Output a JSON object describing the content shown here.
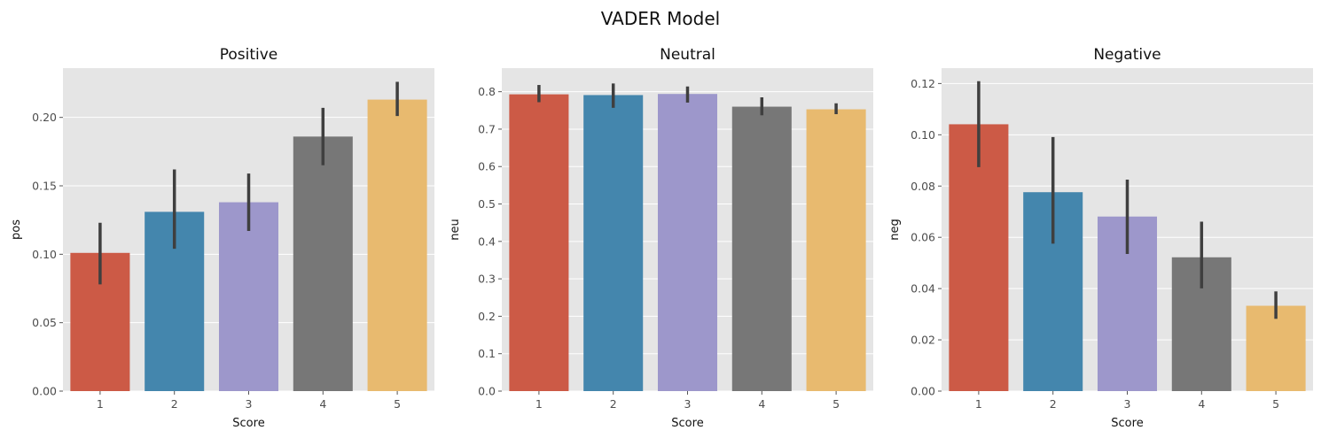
{
  "figure": {
    "title": "VADER Model"
  },
  "chart_data": [
    {
      "type": "bar",
      "title": "Positive",
      "xlabel": "Score",
      "ylabel": "pos",
      "categories": [
        "1",
        "2",
        "3",
        "4",
        "5"
      ],
      "values": [
        0.101,
        0.131,
        0.138,
        0.186,
        0.213
      ],
      "error_low": [
        0.078,
        0.104,
        0.117,
        0.165,
        0.201
      ],
      "error_high": [
        0.123,
        0.162,
        0.159,
        0.207,
        0.226
      ],
      "ylim": [
        0,
        0.236
      ],
      "yticks": [
        0.0,
        0.05,
        0.1,
        0.15,
        0.2
      ],
      "ytick_labels": [
        "0.00",
        "0.05",
        "0.10",
        "0.15",
        "0.20"
      ],
      "grid": true,
      "colors": [
        "#cc5a46",
        "#4486ad",
        "#9d97cb",
        "#777777",
        "#e8ba6f"
      ]
    },
    {
      "type": "bar",
      "title": "Neutral",
      "xlabel": "Score",
      "ylabel": "neu",
      "categories": [
        "1",
        "2",
        "3",
        "4",
        "5"
      ],
      "values": [
        0.793,
        0.791,
        0.794,
        0.76,
        0.753
      ],
      "error_low": [
        0.772,
        0.757,
        0.771,
        0.737,
        0.74
      ],
      "error_high": [
        0.818,
        0.822,
        0.814,
        0.785,
        0.769
      ],
      "ylim": [
        0,
        0.863
      ],
      "yticks": [
        0.0,
        0.1,
        0.2,
        0.3,
        0.4,
        0.5,
        0.6,
        0.7,
        0.8
      ],
      "ytick_labels": [
        "0.0",
        "0.1",
        "0.2",
        "0.3",
        "0.4",
        "0.5",
        "0.6",
        "0.7",
        "0.8"
      ],
      "grid": true,
      "colors": [
        "#cc5a46",
        "#4486ad",
        "#9d97cb",
        "#777777",
        "#e8ba6f"
      ]
    },
    {
      "type": "bar",
      "title": "Negative",
      "xlabel": "Score",
      "ylabel": "neg",
      "categories": [
        "1",
        "2",
        "3",
        "4",
        "5"
      ],
      "values": [
        0.1041,
        0.0776,
        0.0681,
        0.0522,
        0.0333
      ],
      "error_low": [
        0.0874,
        0.0575,
        0.0535,
        0.0401,
        0.0282
      ],
      "error_high": [
        0.1209,
        0.0991,
        0.0825,
        0.0661,
        0.0389
      ],
      "ylim": [
        0,
        0.126
      ],
      "yticks": [
        0.0,
        0.02,
        0.04,
        0.06,
        0.08,
        0.1,
        0.12
      ],
      "ytick_labels": [
        "0.00",
        "0.02",
        "0.04",
        "0.06",
        "0.08",
        "0.10",
        "0.12"
      ],
      "grid": true,
      "colors": [
        "#cc5a46",
        "#4486ad",
        "#9d97cb",
        "#777777",
        "#e8ba6f"
      ]
    }
  ]
}
